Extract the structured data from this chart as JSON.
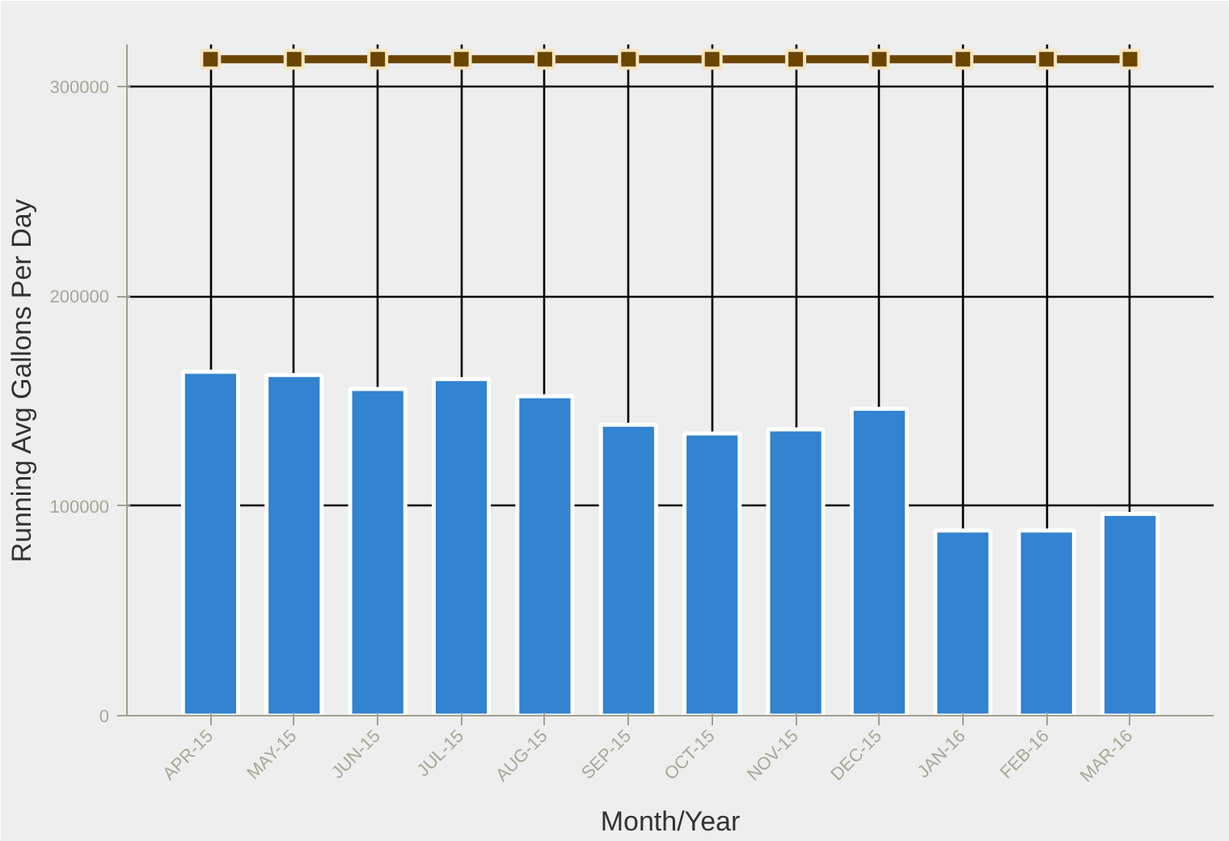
{
  "chart_data": {
    "type": "bar",
    "xlabel": "Month/Year",
    "ylabel": "Running Avg Gallons Per Day",
    "categories": [
      "APR-15",
      "MAY-15",
      "JUN-15",
      "JUL-15",
      "AUG-15",
      "SEP-15",
      "OCT-15",
      "NOV-15",
      "DEC-15",
      "JAN-16",
      "FEB-16",
      "MAR-16"
    ],
    "series": [
      {
        "color": "#3283d0",
        "values": [
          164000,
          162400,
          155800,
          160500,
          152300,
          138700,
          134600,
          136500,
          146300,
          88300,
          88300,
          96200
        ]
      },
      {
        "type": "line",
        "color": "#6b4500",
        "values": [
          313000,
          313000,
          313000,
          313000,
          313000,
          313000,
          313000,
          313000,
          313000,
          313000,
          313000,
          313000
        ]
      }
    ],
    "ylim": [
      0,
      320000
    ],
    "yticks": [
      0,
      100000,
      200000,
      300000
    ],
    "grid": true,
    "marker": "square"
  }
}
